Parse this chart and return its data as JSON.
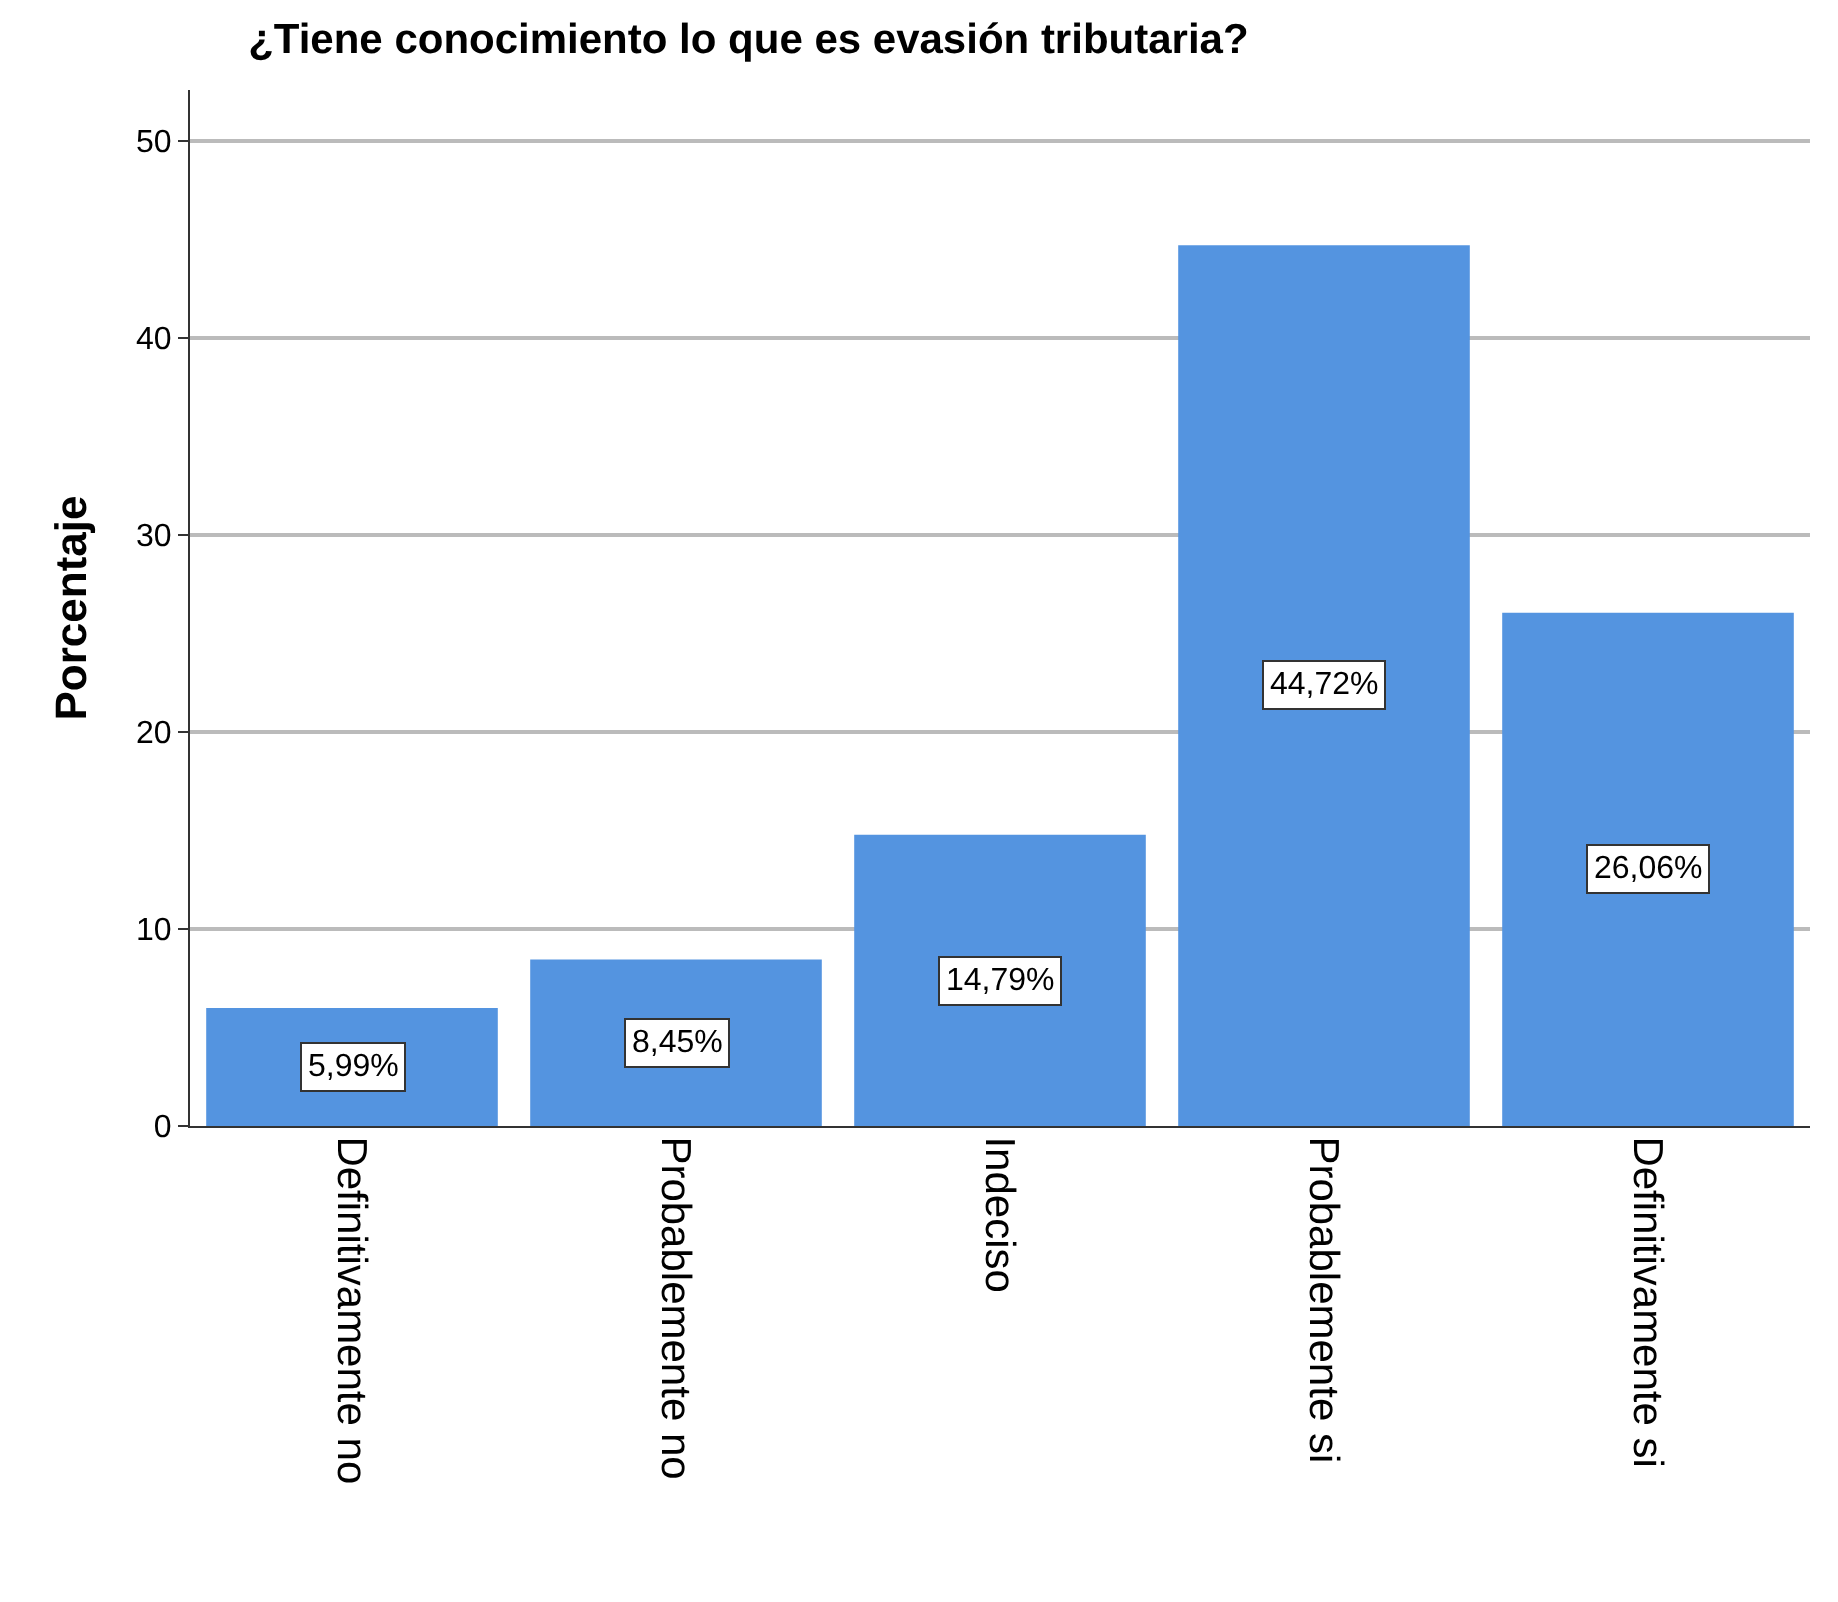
{
  "chart_data": {
    "type": "bar",
    "title": "¿Tiene conocimiento lo que es evasión tributaria?",
    "ylabel": "Porcentaje",
    "categories": [
      "Definitivamente no",
      "Probablemente no",
      "Indeciso",
      "Probablemente si",
      "Definitivamente si"
    ],
    "values": [
      5.99,
      8.45,
      14.79,
      44.72,
      26.06
    ],
    "value_labels": [
      "5,99%",
      "8,45%",
      "14,79%",
      "44,72%",
      "26,06%"
    ],
    "color": "#5494e0",
    "ylim": [
      0,
      52.6
    ],
    "yticks": [
      0,
      10,
      20,
      30,
      40,
      50
    ],
    "grid": "y"
  }
}
